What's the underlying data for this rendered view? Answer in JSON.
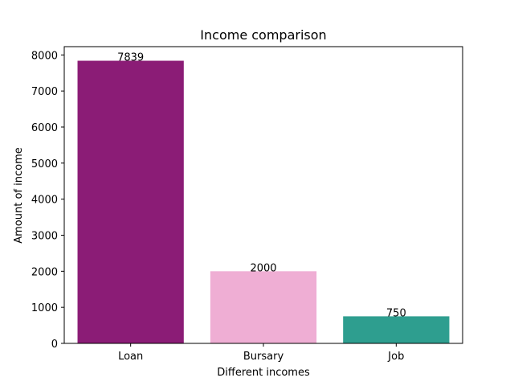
{
  "chart_data": {
    "type": "bar",
    "title": "Income comparison",
    "xlabel": "Different incomes",
    "ylabel": "Amount of income",
    "categories": [
      "Loan",
      "Bursary",
      "Job"
    ],
    "values": [
      7839,
      2000,
      750
    ],
    "data_labels": [
      "7839",
      "2000",
      "750"
    ],
    "colors": [
      "#8b1c76",
      "#efaed4",
      "#2e9e8f"
    ],
    "ylim": [
      0,
      8230
    ],
    "yticks": [
      0,
      1000,
      2000,
      3000,
      4000,
      5000,
      6000,
      7000,
      8000
    ],
    "grid": false,
    "legend": "none"
  }
}
